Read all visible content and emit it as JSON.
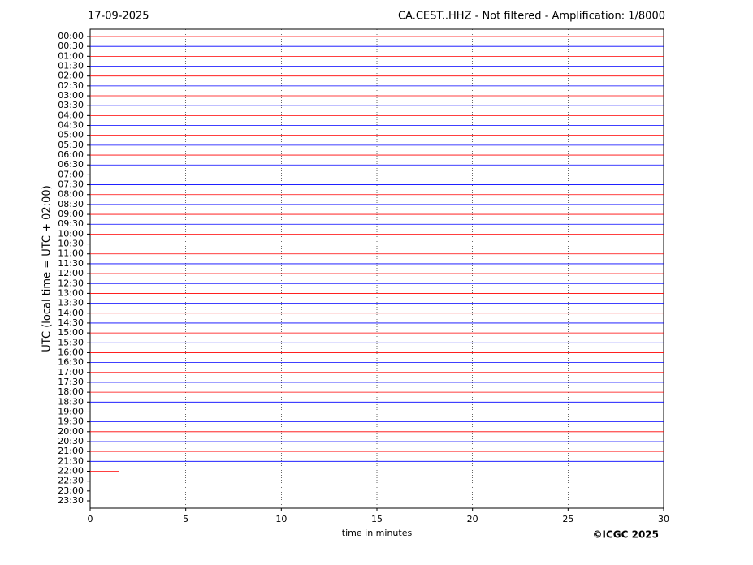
{
  "chart_data": {
    "type": "helicorder",
    "title_left": "17-09-2025",
    "title": "CA.CEST..HHZ - Not filtered - Amplification: 1/8000",
    "ylabel": "UTC (local time = UTC + 02:00)",
    "xlabel": "time in minutes",
    "credit": "©ICGC 2025",
    "xlim": [
      0,
      30
    ],
    "xticks": [
      0,
      5,
      10,
      15,
      20,
      25,
      30
    ],
    "grid": true,
    "colors": [
      "#ff0000",
      "#0000ff"
    ],
    "categories": [
      "00:00",
      "00:30",
      "01:00",
      "01:30",
      "02:00",
      "02:30",
      "03:00",
      "03:30",
      "04:00",
      "04:30",
      "05:00",
      "05:30",
      "06:00",
      "06:30",
      "07:00",
      "07:30",
      "08:00",
      "08:30",
      "09:00",
      "09:30",
      "10:00",
      "10:30",
      "11:00",
      "11:30",
      "12:00",
      "12:30",
      "13:00",
      "13:30",
      "14:00",
      "14:30",
      "15:00",
      "15:30",
      "16:00",
      "16:30",
      "17:00",
      "17:30",
      "18:00",
      "18:30",
      "19:00",
      "19:30",
      "20:00",
      "20:30",
      "21:00",
      "21:30",
      "22:00",
      "22:30",
      "23:00",
      "23:30"
    ],
    "values": [
      30,
      30,
      30,
      30,
      30,
      30,
      30,
      30,
      30,
      30,
      30,
      30,
      30,
      30,
      30,
      30,
      30,
      30,
      30,
      30,
      30,
      30,
      30,
      30,
      30,
      30,
      30,
      30,
      30,
      30,
      30,
      30,
      30,
      30,
      30,
      30,
      30,
      30,
      30,
      30,
      30,
      30,
      30,
      30,
      1.5,
      null,
      null,
      null
    ]
  }
}
